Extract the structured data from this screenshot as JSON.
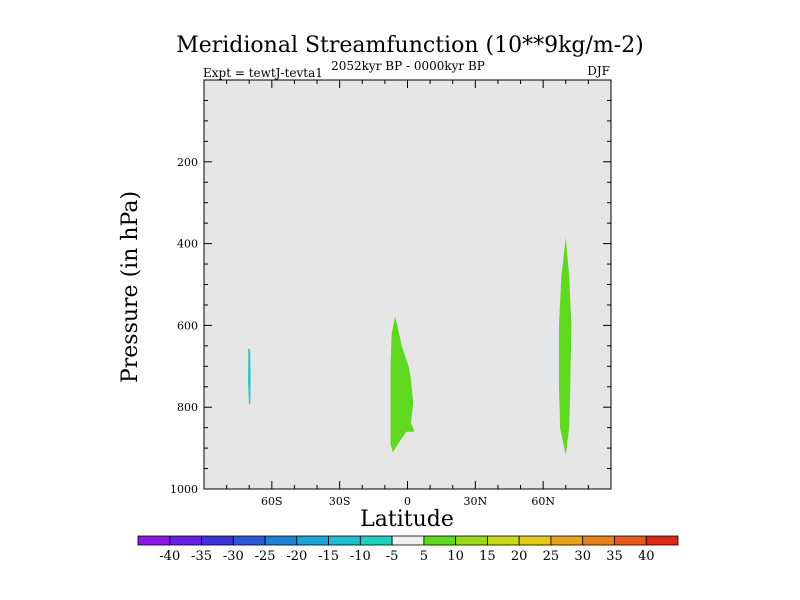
{
  "chart_data": {
    "type": "contour",
    "title": "Meridional Streamfunction (10**9kg/m-2)",
    "subtitle_center": "2052kyr BP - 0000kyr BP",
    "subtitle_left": "Expt = tewtJ-tevta1",
    "subtitle_right": "DJF",
    "xlabel": "Latitude",
    "ylabel": "Pressure (in hPa)",
    "xlim": [
      -90,
      90
    ],
    "ylim": [
      1000,
      0
    ],
    "x_ticks": [
      -60,
      -30,
      0,
      30,
      60
    ],
    "x_tick_labels": [
      "60S",
      "30S",
      "0",
      "30N",
      "60N"
    ],
    "y_ticks": [
      200,
      400,
      600,
      800,
      1000
    ],
    "y_tick_labels": [
      "200",
      "400",
      "600",
      "800",
      "1000"
    ],
    "background_color": "#e6e6e6",
    "regions": [
      {
        "name": "negative-cell-south",
        "level": "-10 to -5",
        "color": "#1ec8c8",
        "outline": [
          [
            -70.4,
            655
          ],
          [
            -69.6,
            660
          ],
          [
            -69.4,
            720
          ],
          [
            -69.5,
            790
          ],
          [
            -70.1,
            795
          ],
          [
            -70.5,
            740
          ]
        ]
      },
      {
        "name": "positive-cell-equator",
        "level": "5 to 10",
        "color": "#5fd920",
        "outline": [
          [
            -5.5,
            578
          ],
          [
            -4.5,
            600
          ],
          [
            -2.5,
            650
          ],
          [
            0.5,
            700
          ],
          [
            1.5,
            730
          ],
          [
            2.5,
            790
          ],
          [
            1.5,
            840
          ],
          [
            2.5,
            850
          ],
          [
            3,
            860
          ],
          [
            -0.5,
            860
          ],
          [
            -3,
            880
          ],
          [
            -6.5,
            910
          ],
          [
            -7.5,
            890
          ],
          [
            -7.5,
            800
          ],
          [
            -7.5,
            700
          ],
          [
            -7,
            620
          ]
        ]
      },
      {
        "name": "positive-cell-north",
        "level": "5 to 10",
        "color": "#5fd920",
        "outline": [
          [
            70,
            385
          ],
          [
            71.5,
            480
          ],
          [
            72.5,
            600
          ],
          [
            72,
            750
          ],
          [
            71.5,
            850
          ],
          [
            70,
            918
          ],
          [
            67.5,
            850
          ],
          [
            67,
            750
          ],
          [
            67,
            600
          ],
          [
            68,
            480
          ]
        ]
      }
    ],
    "colorbar": {
      "labels": [
        "-40",
        "-35",
        "-30",
        "-25",
        "-20",
        "-15",
        "-10",
        "-5",
        "5",
        "10",
        "15",
        "20",
        "25",
        "30",
        "35",
        "40"
      ],
      "colors": [
        "#8c1ae6",
        "#6a1ee6",
        "#3c32d8",
        "#2c5ad6",
        "#1e82d2",
        "#1ea4d8",
        "#1ebcd2",
        "#20cfc0",
        "#f0f0f0",
        "#5fd920",
        "#9ad81c",
        "#c8d81c",
        "#e6c81a",
        "#e6a21a",
        "#e6821a",
        "#e65a1a",
        "#d82a14"
      ]
    }
  }
}
